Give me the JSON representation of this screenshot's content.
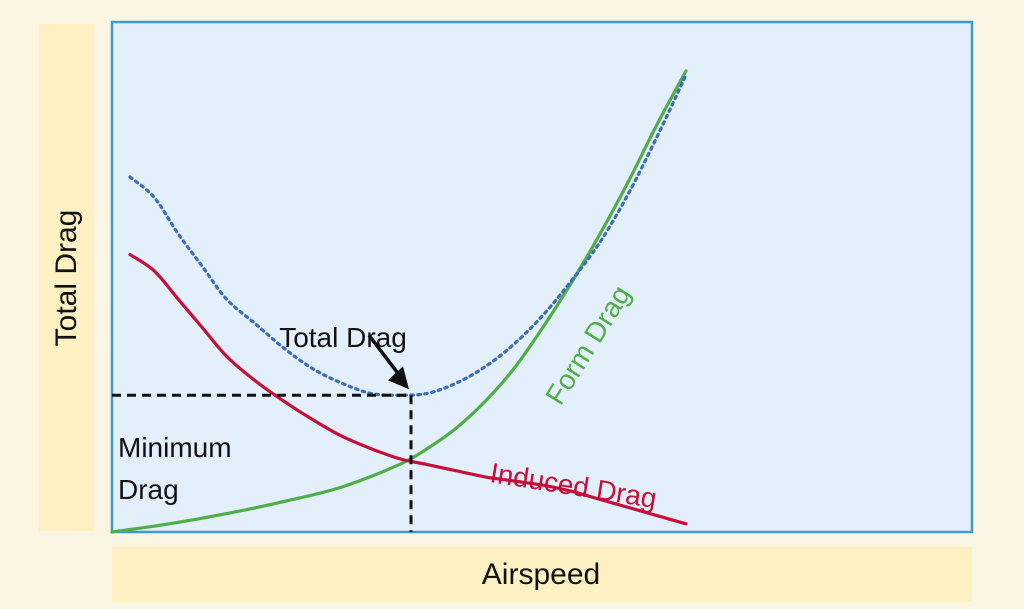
{
  "chart_data": {
    "type": "line",
    "title": "",
    "xlabel": "Airspeed",
    "ylabel": "Total Drag",
    "xlim": [
      0,
      100
    ],
    "ylim": [
      0,
      100
    ],
    "grid": false,
    "series": [
      {
        "name": "Form Drag",
        "color": "#4fae48",
        "style": "solid",
        "x": [
          0,
          10,
          20,
          30,
          40,
          50,
          55,
          60,
          65,
          70,
          75,
          80,
          85,
          90,
          95,
          100
        ],
        "y": [
          0,
          2,
          4.5,
          7.5,
          11,
          16.5,
          20.5,
          25.5,
          32,
          40,
          50,
          61,
          73,
          86,
          100,
          113
        ]
      },
      {
        "name": "Induced Drag",
        "color": "#c5103a",
        "style": "solid",
        "x": [
          0,
          5,
          10,
          15,
          20,
          25,
          30,
          35,
          40,
          45,
          50,
          55,
          60,
          65,
          70,
          75,
          80,
          85,
          90,
          95,
          100
        ],
        "y": [
          68,
          64,
          57,
          50,
          43,
          37,
          32,
          27.5,
          23.5,
          20.5,
          18,
          16.5,
          15,
          13.5,
          12.5,
          11.5,
          10,
          8,
          6,
          4,
          2
        ]
      },
      {
        "name": "Total Drag",
        "color": "#3e6db5",
        "style": "dotted",
        "x": [
          0,
          5,
          10,
          15,
          20,
          25,
          30,
          35,
          40,
          45,
          50,
          55,
          60,
          65,
          70,
          75,
          80,
          85,
          90,
          95,
          100
        ],
        "y": [
          87,
          82,
          73,
          65,
          57,
          51,
          45,
          40,
          36.5,
          34,
          33.5,
          34,
          36.5,
          40.5,
          46,
          53,
          61.5,
          71,
          83,
          97,
          112
        ]
      }
    ],
    "annotations": [
      {
        "name": "total-drag-label",
        "text": "Total Drag"
      },
      {
        "name": "form-drag-label",
        "text": "Form Drag"
      },
      {
        "name": "induced-drag-label",
        "text": "Induced Drag"
      },
      {
        "name": "minimum-drag-label",
        "text": [
          "Minimum",
          "Drag"
        ]
      }
    ],
    "minimum_drag": {
      "x": 50,
      "y": 33.5
    },
    "colors": {
      "background": "#fbf6e3",
      "plot_background": "#e3effa",
      "plot_border": "#3d9ad6",
      "label_band": "#fdf0c2"
    }
  }
}
